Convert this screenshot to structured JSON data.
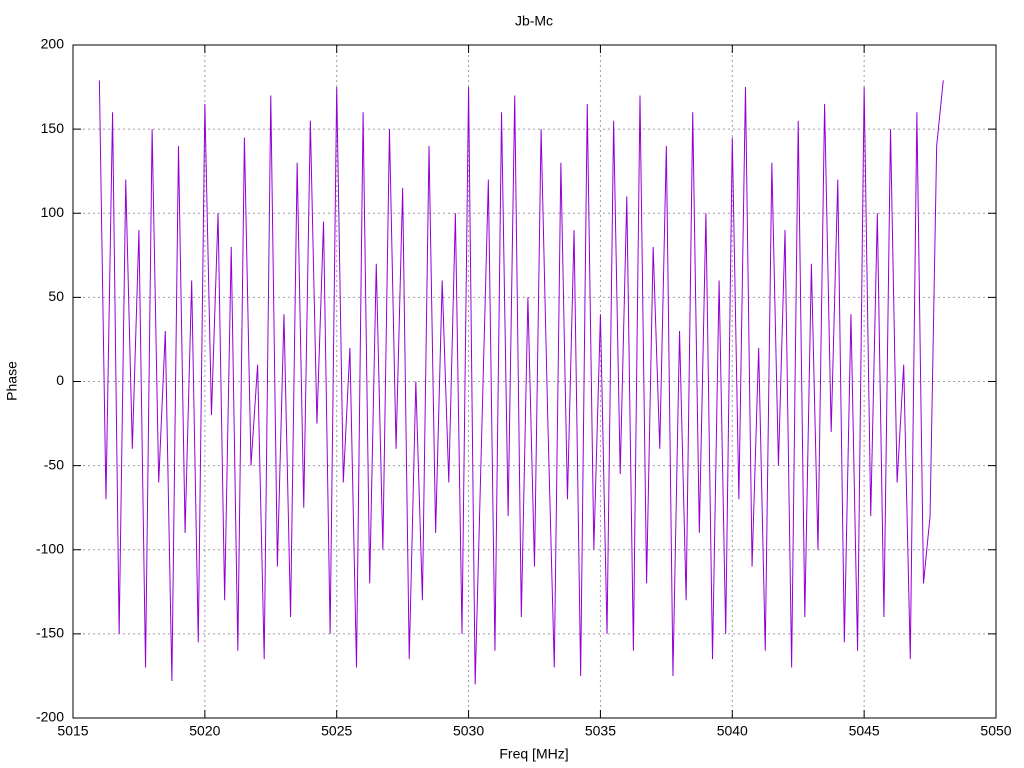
{
  "chart_data": {
    "type": "line",
    "title": "Jb-Mc",
    "x_label": "Freq [MHz]",
    "y_label": "Phase",
    "color": "#9400d3",
    "grid": true,
    "xlim": [
      5015,
      5050
    ],
    "xticks": [
      5015,
      5020,
      5025,
      5030,
      5035,
      5040,
      5045,
      5050
    ],
    "ylim": [
      -200,
      200
    ],
    "yticks": [
      -200,
      -150,
      -100,
      -50,
      0,
      50,
      100,
      150,
      200
    ],
    "x": [
      5016,
      5016.25,
      5016.5,
      5016.75,
      5017,
      5017.25,
      5017.5,
      5017.75,
      5018,
      5018.25,
      5018.5,
      5018.75,
      5019,
      5019.25,
      5019.5,
      5019.75,
      5020,
      5020.25,
      5020.5,
      5020.75,
      5021,
      5021.25,
      5021.5,
      5021.75,
      5022,
      5022.25,
      5022.5,
      5022.75,
      5023,
      5023.25,
      5023.5,
      5023.75,
      5024,
      5024.25,
      5024.5,
      5024.75,
      5025,
      5025.25,
      5025.5,
      5025.75,
      5026,
      5026.25,
      5026.5,
      5026.75,
      5027,
      5027.25,
      5027.5,
      5027.75,
      5028,
      5028.25,
      5028.5,
      5028.75,
      5029,
      5029.25,
      5029.5,
      5029.75,
      5030,
      5030.25,
      5030.5,
      5030.75,
      5031,
      5031.25,
      5031.5,
      5031.75,
      5032,
      5032.25,
      5032.5,
      5032.75,
      5033,
      5033.25,
      5033.5,
      5033.75,
      5034,
      5034.25,
      5034.5,
      5034.75,
      5035,
      5035.25,
      5035.5,
      5035.75,
      5036,
      5036.25,
      5036.5,
      5036.75,
      5037,
      5037.25,
      5037.5,
      5037.75,
      5038,
      5038.25,
      5038.5,
      5038.75,
      5039,
      5039.25,
      5039.5,
      5039.75,
      5040,
      5040.25,
      5040.5,
      5040.75,
      5041,
      5041.25,
      5041.5,
      5041.75,
      5042,
      5042.25,
      5042.5,
      5042.75,
      5043,
      5043.25,
      5043.5,
      5043.75,
      5044,
      5044.25,
      5044.5,
      5044.75,
      5045,
      5045.25,
      5045.5,
      5045.75,
      5046,
      5046.25,
      5046.5,
      5046.75,
      5047,
      5047.25,
      5047.5,
      5047.75,
      5048
    ],
    "values": [
      179,
      -70,
      160,
      -150,
      120,
      -40,
      90,
      -170,
      150,
      -60,
      30,
      -178,
      140,
      -90,
      60,
      -155,
      165,
      -20,
      100,
      -130,
      80,
      -160,
      145,
      -50,
      10,
      -165,
      170,
      -110,
      40,
      -140,
      130,
      -75,
      155,
      -25,
      95,
      -150,
      175,
      -60,
      20,
      -170,
      160,
      -120,
      70,
      -100,
      150,
      -40,
      115,
      -165,
      0,
      -130,
      140,
      -90,
      60,
      -60,
      100,
      -150,
      175,
      -180,
      -30,
      120,
      -160,
      160,
      -80,
      170,
      -140,
      50,
      -110,
      150,
      -20,
      -170,
      130,
      -70,
      90,
      -175,
      165,
      -100,
      40,
      -150,
      155,
      -55,
      110,
      -160,
      170,
      -120,
      80,
      -40,
      140,
      -175,
      30,
      -130,
      160,
      -90,
      100,
      -165,
      60,
      -150,
      145,
      -70,
      175,
      -110,
      20,
      -160,
      130,
      -50,
      90,
      -170,
      155,
      -140,
      70,
      -100,
      165,
      -30,
      120,
      -155,
      40,
      -160,
      175,
      -80,
      100,
      -140,
      150,
      -60,
      10,
      -165,
      160,
      -120,
      -80,
      140,
      179
    ]
  }
}
